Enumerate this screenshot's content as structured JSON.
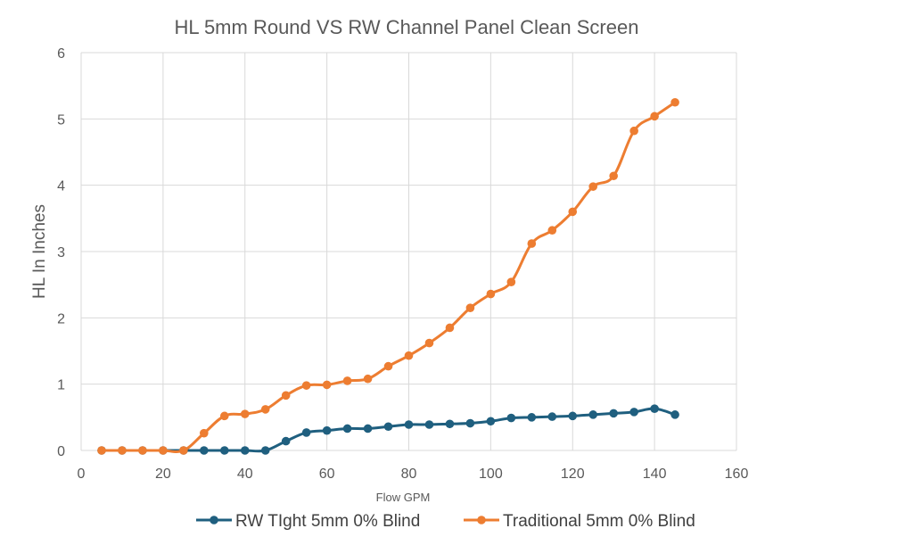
{
  "chart_data": {
    "type": "line",
    "title": "HL 5mm Round VS RW Channel Panel Clean Screen",
    "xlabel": "Flow GPM",
    "ylabel": "HL In Inches",
    "xlim": [
      0,
      160
    ],
    "ylim": [
      0,
      6
    ],
    "xticks": [
      "0",
      "20",
      "40",
      "60",
      "80",
      "100",
      "120",
      "140",
      "160"
    ],
    "yticks": [
      "0",
      "1",
      "2",
      "3",
      "4",
      "5",
      "6"
    ],
    "grid": true,
    "legend": "bottom",
    "x": [
      5,
      10,
      15,
      20,
      25,
      30,
      35,
      40,
      45,
      50,
      55,
      60,
      65,
      70,
      75,
      80,
      85,
      90,
      95,
      100,
      105,
      110,
      115,
      120,
      125,
      130,
      135,
      140,
      145
    ],
    "series": [
      {
        "name": "RW TIght 5mm 0% Blind",
        "color": "#1f5f7f",
        "values": [
          0,
          0,
          0,
          0,
          0,
          0,
          0,
          0,
          0,
          0.14,
          0.27,
          0.3,
          0.33,
          0.33,
          0.36,
          0.39,
          0.39,
          0.4,
          0.41,
          0.44,
          0.49,
          0.5,
          0.51,
          0.52,
          0.54,
          0.56,
          0.58,
          0.63,
          0.54
        ]
      },
      {
        "name": "Traditional 5mm 0% Blind",
        "color": "#ed7d31",
        "values": [
          0,
          0,
          0,
          0,
          0,
          0.26,
          0.52,
          0.55,
          0.62,
          0.83,
          0.98,
          0.99,
          1.05,
          1.08,
          1.27,
          1.43,
          1.62,
          1.85,
          2.15,
          2.36,
          2.54,
          3.12,
          3.32,
          3.6,
          3.98,
          4.14,
          4.82,
          5.04,
          5.25
        ]
      }
    ]
  }
}
